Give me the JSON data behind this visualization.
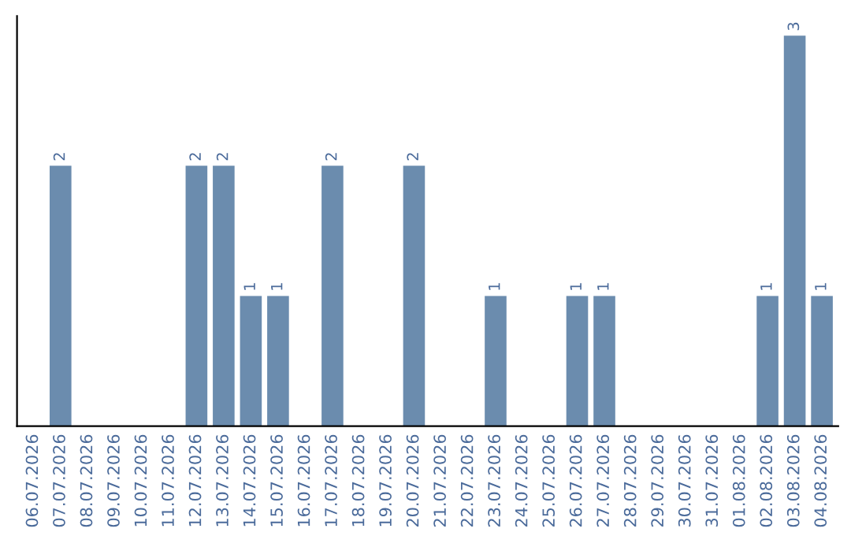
{
  "chart_data": {
    "type": "bar",
    "categories": [
      "06.07.2026",
      "07.07.2026",
      "08.07.2026",
      "09.07.2026",
      "10.07.2026",
      "11.07.2026",
      "12.07.2026",
      "13.07.2026",
      "14.07.2026",
      "15.07.2026",
      "16.07.2026",
      "17.07.2026",
      "18.07.2026",
      "19.07.2026",
      "20.07.2026",
      "21.07.2026",
      "22.07.2026",
      "23.07.2026",
      "24.07.2026",
      "25.07.2026",
      "26.07.2026",
      "27.07.2026",
      "28.07.2026",
      "29.07.2026",
      "30.07.2026",
      "31.07.2026",
      "01.08.2026",
      "02.08.2026",
      "03.08.2026",
      "04.08.2026"
    ],
    "values": [
      0,
      2,
      0,
      0,
      0,
      0,
      2,
      2,
      1,
      1,
      0,
      2,
      0,
      0,
      2,
      0,
      0,
      1,
      0,
      0,
      1,
      1,
      0,
      0,
      0,
      0,
      0,
      1,
      3,
      1
    ],
    "value_labels": [
      null,
      "2",
      null,
      null,
      null,
      null,
      "2",
      "2",
      "1",
      "1",
      null,
      "2",
      null,
      null,
      "2",
      null,
      null,
      "1",
      null,
      null,
      "1",
      "1",
      null,
      null,
      null,
      null,
      null,
      "1",
      "3",
      "1"
    ],
    "color": "#6b8cae",
    "tick_labels": "x",
    "grid": false,
    "legend": false
  }
}
